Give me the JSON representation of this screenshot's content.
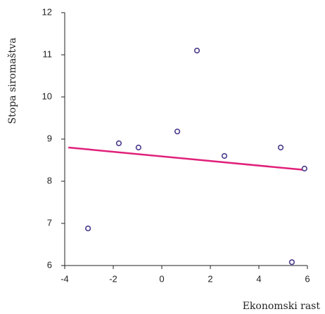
{
  "chart_data": {
    "type": "scatter",
    "xlabel": "Ekonomski rast",
    "ylabel": "Stopa siromaštva",
    "x": [
      -3.04,
      -1.77,
      -0.96,
      0.64,
      1.45,
      2.58,
      4.9,
      5.36,
      5.88
    ],
    "y": [
      6.88,
      8.9,
      8.8,
      9.18,
      11.1,
      8.6,
      8.8,
      6.08,
      8.3
    ],
    "color": "#4b3a8c",
    "trend_line": {
      "x": [
        -3.85,
        5.85
      ],
      "y": [
        8.8,
        8.27
      ],
      "color": "#e0207a"
    },
    "xlim": [
      -4,
      6
    ],
    "ylim": [
      6,
      12
    ],
    "xticks": [
      -4,
      -2,
      0,
      2,
      4,
      6
    ],
    "yticks": [
      6,
      7,
      8,
      9,
      10,
      11,
      12
    ]
  }
}
